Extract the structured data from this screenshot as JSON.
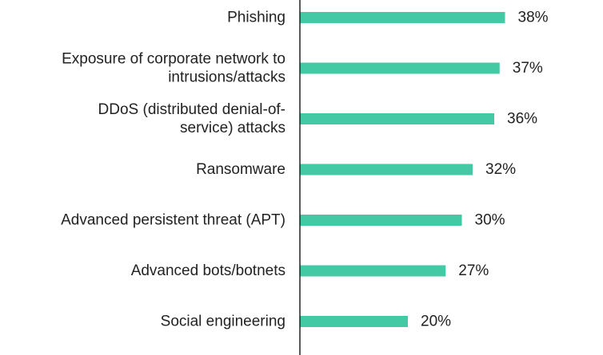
{
  "chart_data": {
    "type": "bar",
    "orientation": "horizontal",
    "categories": [
      "Phishing",
      "Exposure of corporate network to intrusions/attacks",
      "DDoS (distributed denial-of-service) attacks",
      "Ransomware",
      "Advanced persistent threat (APT)",
      "Advanced bots/botnets",
      "Social engineering"
    ],
    "category_lines": [
      [
        "Phishing"
      ],
      [
        "Exposure of corporate network to",
        "intrusions/attacks"
      ],
      [
        "DDoS (distributed denial-of-",
        "service) attacks"
      ],
      [
        "Ransomware"
      ],
      [
        "Advanced persistent threat (APT)"
      ],
      [
        "Advanced bots/botnets"
      ],
      [
        "Social engineering"
      ]
    ],
    "values": [
      38,
      37,
      36,
      32,
      30,
      27,
      20
    ],
    "value_labels": [
      "38%",
      "37%",
      "36%",
      "32%",
      "30%",
      "27%",
      "20%"
    ],
    "unit": "%",
    "xlim": [
      0,
      100
    ],
    "bar_color": "#43c9a4",
    "axis_color": "#222222",
    "grid": false,
    "legend": "none"
  }
}
